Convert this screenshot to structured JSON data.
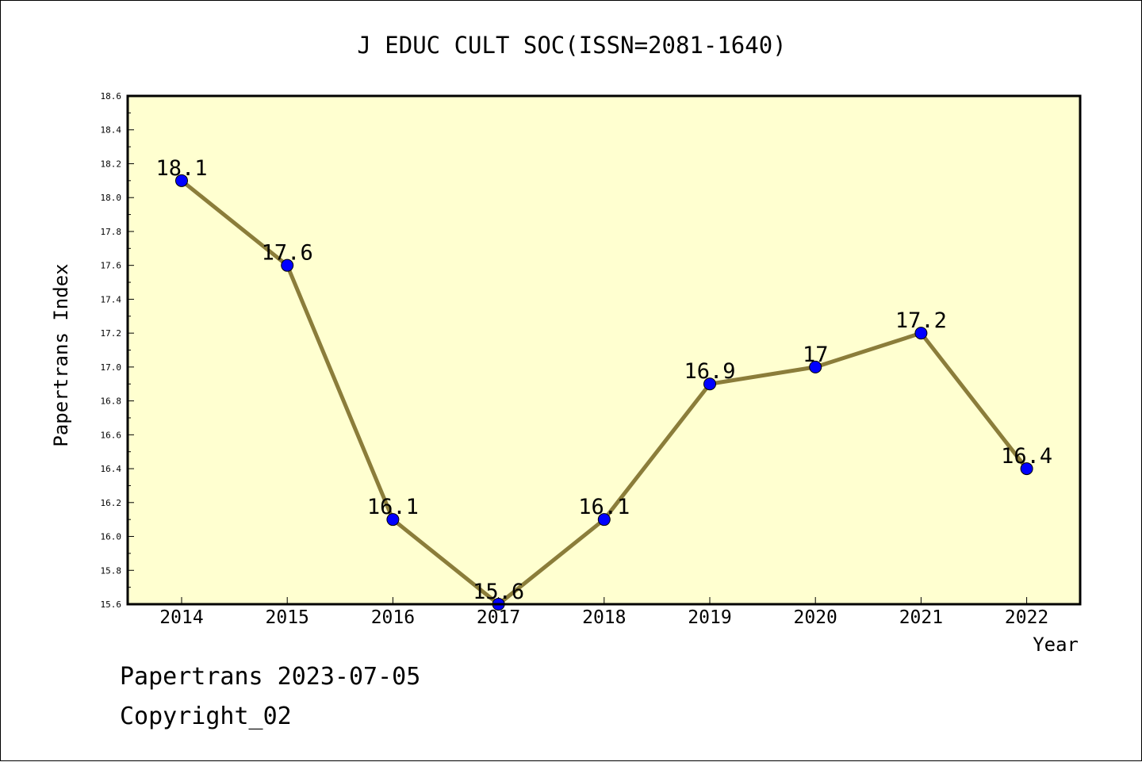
{
  "chart_data": {
    "type": "line",
    "title": "J EDUC CULT SOC(ISSN=2081-1640)",
    "xlabel": "Year",
    "ylabel": "Papertrans Index",
    "categories": [
      "2014",
      "2015",
      "2016",
      "2017",
      "2018",
      "2019",
      "2020",
      "2021",
      "2022"
    ],
    "series": [
      {
        "values": [
          18.1,
          17.6,
          16.1,
          15.6,
          16.1,
          16.9,
          17.0,
          17.2,
          16.4
        ],
        "data_labels": [
          "18.1",
          "17.6",
          "16.1",
          "15.6",
          "16.1",
          "16.9",
          "17",
          "17.2",
          "16.4"
        ]
      }
    ],
    "ylim": [
      15.6,
      18.6
    ],
    "yticks": [
      "15.6",
      "15.8",
      "16.0",
      "16.2",
      "16.4",
      "16.6",
      "16.8",
      "17.0",
      "17.2",
      "17.4",
      "17.6",
      "17.8",
      "18.0",
      "18.2",
      "18.4",
      "18.6"
    ],
    "grid": false,
    "legend": "none",
    "colors": {
      "plot_background": "#FFFFD0",
      "line": "#8B7D3A",
      "marker": "#0000FF"
    }
  },
  "footer": {
    "line1": "Papertrans 2023-07-05",
    "line2": "Copyright_02"
  }
}
